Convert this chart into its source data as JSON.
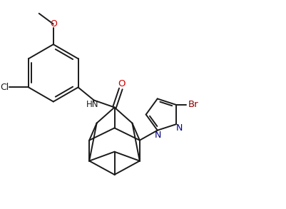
{
  "bg_color": "#ffffff",
  "line_color": "#1a1a1a",
  "N_color": "#000080",
  "O_color": "#cc0000",
  "Br_color": "#8b0000",
  "line_width": 1.4,
  "figsize": [
    4.02,
    2.93
  ],
  "dpi": 100,
  "xlim": [
    0,
    10
  ],
  "ylim": [
    0,
    7.3
  ]
}
